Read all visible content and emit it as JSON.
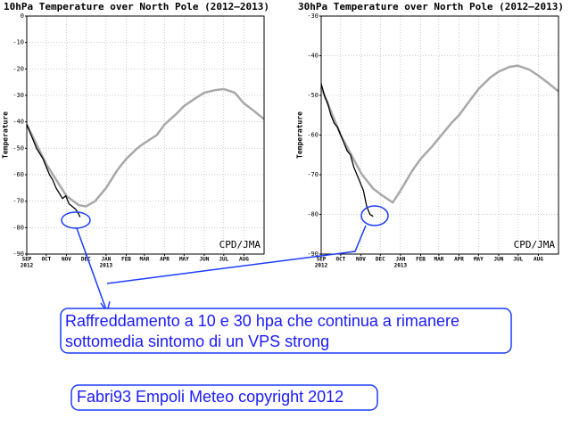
{
  "chart_data": [
    {
      "type": "line",
      "title": "10hPa Temperature over North Pole (2012–2013)",
      "ylabel": "Temperature",
      "source": "CPD/JMA",
      "xlim": [
        0,
        365
      ],
      "xticks": [
        {
          "value": 0,
          "label": "SEP"
        },
        {
          "value": 30,
          "label": "OCT"
        },
        {
          "value": 61,
          "label": "NOV"
        },
        {
          "value": 91,
          "label": "DEC"
        },
        {
          "value": 122,
          "label": "JAN"
        },
        {
          "value": 153,
          "label": "FEB"
        },
        {
          "value": 181,
          "label": "MAR"
        },
        {
          "value": 212,
          "label": "APR"
        },
        {
          "value": 242,
          "label": "MAY"
        },
        {
          "value": 273,
          "label": "JUN"
        },
        {
          "value": 303,
          "label": "JUL"
        },
        {
          "value": 334,
          "label": "AUG"
        }
      ],
      "xtick_years": [
        {
          "value": 0,
          "label": "2012"
        },
        {
          "value": 122,
          "label": "2013"
        }
      ],
      "ylim": [
        -90,
        0
      ],
      "yticks": [
        0,
        -10,
        -20,
        -30,
        -40,
        -50,
        -60,
        -70,
        -80,
        -90
      ],
      "grid": true,
      "series": [
        {
          "color": "#a8a8a8",
          "x": [
            0,
            30,
            61,
            80,
            91,
            105,
            122,
            140,
            153,
            170,
            181,
            200,
            212,
            230,
            242,
            260,
            273,
            290,
            303,
            320,
            334,
            350,
            365
          ],
          "values": [
            -41,
            -56,
            -68,
            -71.5,
            -72,
            -70,
            -65,
            -58,
            -54,
            -50,
            -48,
            -45,
            -41,
            -37,
            -34,
            -31,
            -29,
            -28,
            -27.6,
            -29,
            -33,
            -36,
            -39
          ]
        },
        {
          "color": "#000000",
          "x": [
            0,
            5,
            10,
            15,
            20,
            25,
            30,
            35,
            40,
            45,
            50,
            55,
            60,
            65,
            70,
            75,
            78,
            82
          ],
          "values": [
            -41,
            -44,
            -47,
            -50,
            -52,
            -54,
            -57,
            -60,
            -62,
            -65,
            -67,
            -69,
            -68,
            -71,
            -72,
            -73,
            -74,
            -76
          ]
        }
      ]
    },
    {
      "type": "line",
      "title": "30hPa Temperature over North Pole (2012–2013)",
      "ylabel": "Temperature",
      "source": "CPD/JMA",
      "xlim": [
        0,
        365
      ],
      "xticks": [
        {
          "value": 0,
          "label": "SEP"
        },
        {
          "value": 30,
          "label": "OCT"
        },
        {
          "value": 61,
          "label": "NOV"
        },
        {
          "value": 91,
          "label": "DEC"
        },
        {
          "value": 122,
          "label": "JAN"
        },
        {
          "value": 153,
          "label": "FEB"
        },
        {
          "value": 181,
          "label": "MAR"
        },
        {
          "value": 212,
          "label": "APR"
        },
        {
          "value": 242,
          "label": "MAY"
        },
        {
          "value": 273,
          "label": "JUN"
        },
        {
          "value": 303,
          "label": "JUL"
        },
        {
          "value": 334,
          "label": "AUG"
        }
      ],
      "xtick_years": [
        {
          "value": 0,
          "label": "2012"
        },
        {
          "value": 122,
          "label": "2013"
        }
      ],
      "ylim": [
        -90,
        -30
      ],
      "yticks": [
        -30,
        -40,
        -50,
        -60,
        -70,
        -80,
        -90
      ],
      "grid": true,
      "series": [
        {
          "color": "#a8a8a8",
          "x": [
            0,
            30,
            62,
            80,
            92,
            110,
            122,
            140,
            153,
            170,
            181,
            200,
            212,
            230,
            242,
            260,
            273,
            290,
            302,
            320,
            334,
            350,
            365
          ],
          "values": [
            -48,
            -60,
            -69.8,
            -73.5,
            -75,
            -77,
            -74,
            -69,
            -66,
            -63,
            -60.8,
            -57,
            -55,
            -51,
            -48.4,
            -45.5,
            -44,
            -42.8,
            -42.5,
            -43.5,
            -45,
            -47,
            -49
          ]
        },
        {
          "color": "#000000",
          "x": [
            0,
            5,
            10,
            15,
            20,
            25,
            30,
            35,
            40,
            45,
            50,
            55,
            60,
            65,
            70,
            75,
            80
          ],
          "values": [
            -47,
            -50,
            -52,
            -55,
            -57,
            -58,
            -60,
            -62,
            -64,
            -65,
            -68,
            -70,
            -72,
            -74,
            -78,
            -80,
            -80.5
          ]
        }
      ]
    }
  ],
  "annotations": {
    "note_lines": [
      "Raffreddamento a 10 e 30 hpa che continua a rimanere",
      "sottomedia sintomo di un VPS strong"
    ],
    "credit": "Fabri93 Empoli Meteo copyright 2012"
  }
}
